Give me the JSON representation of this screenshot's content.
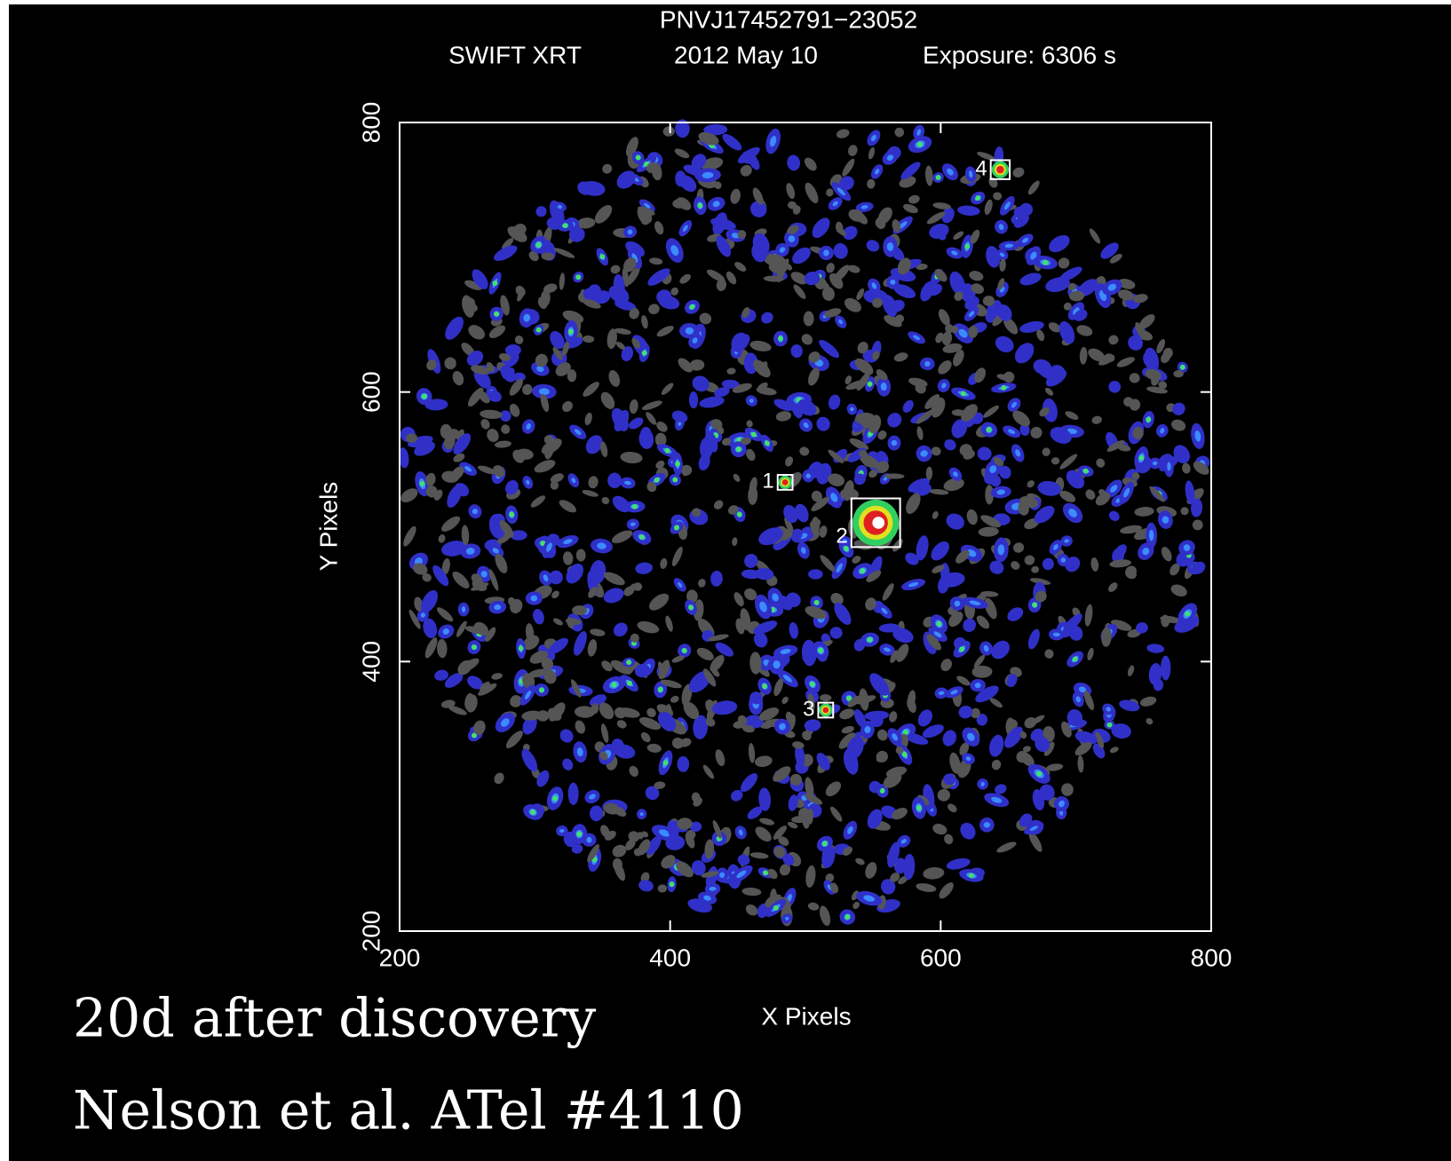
{
  "chart_data": {
    "type": "image",
    "title": "PNVJ17452791−23052",
    "subtitle": [
      "SWIFT XRT",
      "2012 May 10",
      "Exposure: 6306 s"
    ],
    "x_label": "X Pixels",
    "y_label": "Y Pixels",
    "xlim": [
      200,
      800
    ],
    "ylim": [
      200,
      800
    ],
    "xticks": [
      200,
      400,
      600,
      800
    ],
    "yticks": [
      200,
      400,
      600,
      800
    ],
    "sources": [
      {
        "label": "1",
        "x": 485,
        "y": 533,
        "box_size": 11
      },
      {
        "label": "2",
        "x": 552,
        "y": 503,
        "box_size": 36
      },
      {
        "label": "3",
        "x": 515,
        "y": 364,
        "box_size": 11
      },
      {
        "label": "4",
        "x": 644,
        "y": 765,
        "box_size": 14
      }
    ],
    "annotations": [
      "20d after discovery",
      "Nelson et al.  ATel #4110"
    ]
  }
}
